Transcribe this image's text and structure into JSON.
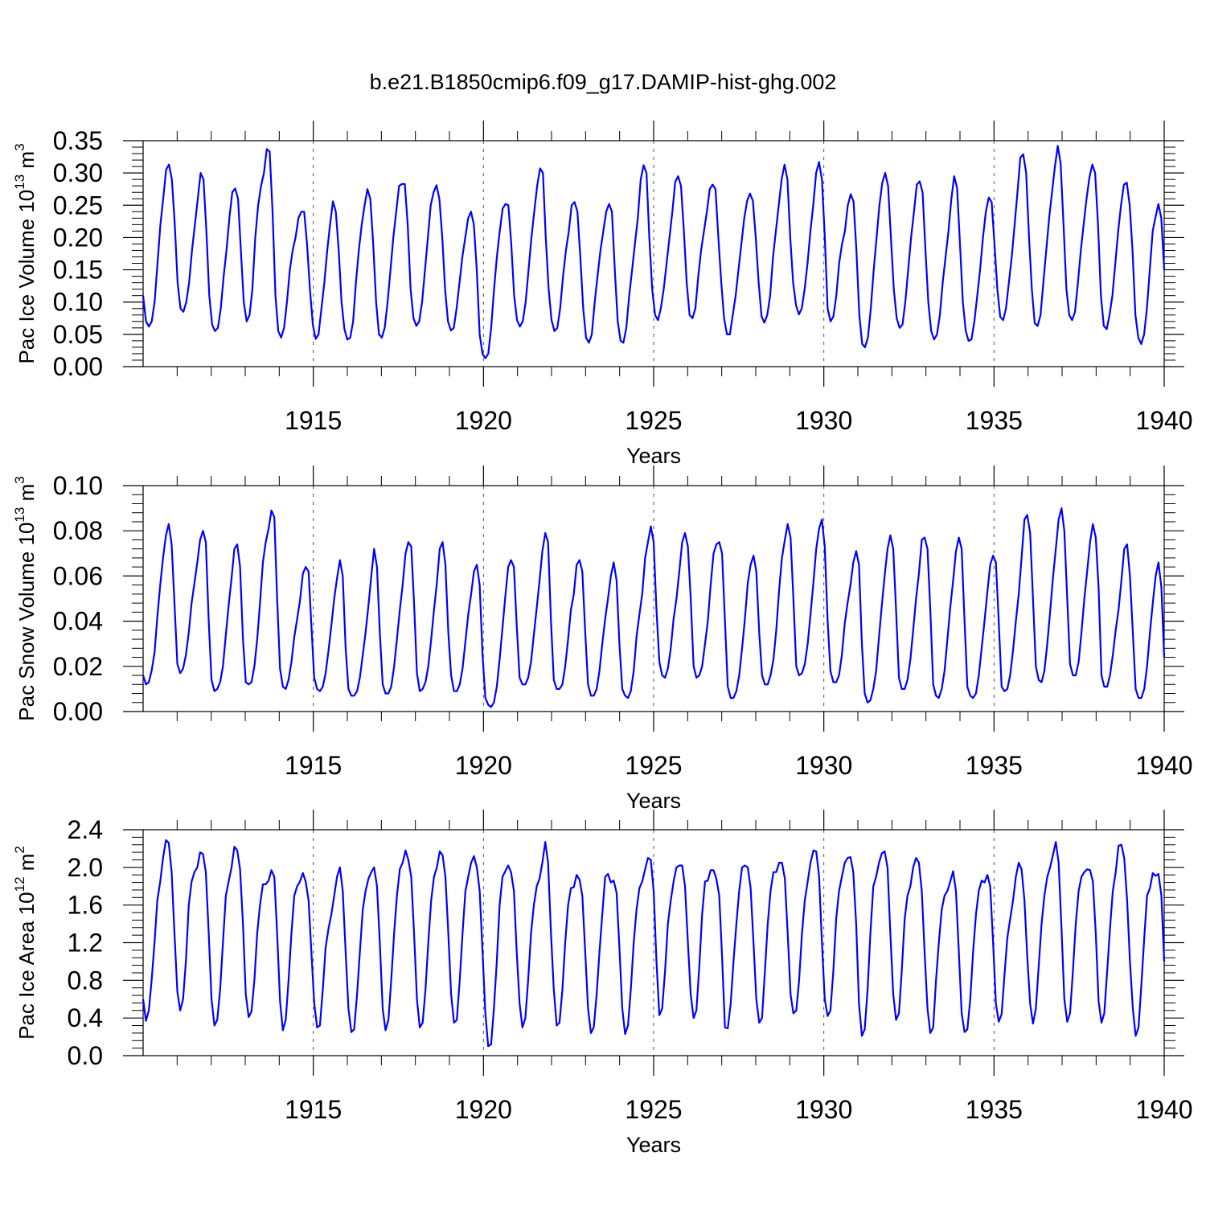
{
  "title": "b.e21.B1850cmip6.f09_g17.DAMIP-hist-ghg.002",
  "colors": {
    "line": "#0000ff",
    "axes": "#000000",
    "background": "#ffffff"
  },
  "chart_data": [
    {
      "type": "line",
      "ylabel": {
        "main": "Pac Ice Volume 10",
        "sup": "13",
        "tail": " m",
        "sup2": "3"
      },
      "xlabel": "Years",
      "xlim": [
        1910,
        1940
      ],
      "ylim": [
        0,
        0.35
      ],
      "xticks": [
        1915,
        1920,
        1925,
        1930,
        1935,
        1940
      ],
      "xtick_labels": [
        "1915",
        "1920",
        "1925",
        "1930",
        "1935",
        "1940"
      ],
      "yticks": [
        0,
        0.05,
        0.1,
        0.15,
        0.2,
        0.25,
        0.3,
        0.35
      ],
      "ytick_labels": [
        "0.00",
        "0.05",
        "0.10",
        "0.15",
        "0.20",
        "0.25",
        "0.30",
        "0.35"
      ],
      "start_year": 1910,
      "step": 0.0833,
      "values": [
        0.11,
        0.07,
        0.062,
        0.07,
        0.1,
        0.16,
        0.22,
        0.26,
        0.305,
        0.313,
        0.29,
        0.22,
        0.13,
        0.09,
        0.085,
        0.1,
        0.13,
        0.18,
        0.22,
        0.26,
        0.3,
        0.29,
        0.21,
        0.11,
        0.065,
        0.055,
        0.06,
        0.09,
        0.14,
        0.18,
        0.23,
        0.27,
        0.276,
        0.26,
        0.18,
        0.1,
        0.07,
        0.08,
        0.12,
        0.2,
        0.25,
        0.28,
        0.3,
        0.337,
        0.333,
        0.24,
        0.11,
        0.055,
        0.045,
        0.06,
        0.1,
        0.15,
        0.18,
        0.2,
        0.23,
        0.24,
        0.24,
        0.19,
        0.12,
        0.065,
        0.043,
        0.05,
        0.09,
        0.13,
        0.18,
        0.22,
        0.256,
        0.24,
        0.18,
        0.1,
        0.058,
        0.042,
        0.045,
        0.07,
        0.13,
        0.18,
        0.22,
        0.25,
        0.275,
        0.26,
        0.19,
        0.1,
        0.05,
        0.045,
        0.06,
        0.1,
        0.15,
        0.2,
        0.24,
        0.28,
        0.283,
        0.283,
        0.22,
        0.12,
        0.075,
        0.063,
        0.07,
        0.1,
        0.15,
        0.2,
        0.25,
        0.27,
        0.281,
        0.26,
        0.2,
        0.12,
        0.07,
        0.056,
        0.06,
        0.09,
        0.13,
        0.17,
        0.2,
        0.23,
        0.24,
        0.22,
        0.15,
        0.05,
        0.02,
        0.013,
        0.02,
        0.06,
        0.12,
        0.17,
        0.21,
        0.245,
        0.252,
        0.25,
        0.19,
        0.11,
        0.072,
        0.062,
        0.07,
        0.1,
        0.15,
        0.2,
        0.24,
        0.28,
        0.307,
        0.3,
        0.2,
        0.12,
        0.072,
        0.055,
        0.06,
        0.09,
        0.14,
        0.18,
        0.21,
        0.25,
        0.255,
        0.24,
        0.17,
        0.09,
        0.045,
        0.037,
        0.05,
        0.1,
        0.14,
        0.18,
        0.21,
        0.24,
        0.252,
        0.24,
        0.15,
        0.07,
        0.04,
        0.037,
        0.06,
        0.11,
        0.15,
        0.19,
        0.23,
        0.29,
        0.312,
        0.3,
        0.2,
        0.12,
        0.08,
        0.072,
        0.09,
        0.12,
        0.16,
        0.2,
        0.24,
        0.286,
        0.295,
        0.28,
        0.21,
        0.13,
        0.08,
        0.075,
        0.09,
        0.14,
        0.18,
        0.21,
        0.24,
        0.275,
        0.282,
        0.275,
        0.2,
        0.13,
        0.075,
        0.05,
        0.05,
        0.08,
        0.11,
        0.15,
        0.19,
        0.23,
        0.257,
        0.268,
        0.257,
        0.2,
        0.13,
        0.078,
        0.068,
        0.08,
        0.11,
        0.17,
        0.21,
        0.25,
        0.29,
        0.313,
        0.29,
        0.2,
        0.13,
        0.095,
        0.081,
        0.09,
        0.12,
        0.16,
        0.21,
        0.25,
        0.3,
        0.317,
        0.29,
        0.2,
        0.09,
        0.07,
        0.078,
        0.11,
        0.16,
        0.19,
        0.21,
        0.25,
        0.267,
        0.256,
        0.18,
        0.08,
        0.035,
        0.03,
        0.045,
        0.09,
        0.15,
        0.2,
        0.25,
        0.285,
        0.3,
        0.28,
        0.2,
        0.12,
        0.075,
        0.06,
        0.065,
        0.1,
        0.15,
        0.2,
        0.24,
        0.282,
        0.287,
        0.27,
        0.18,
        0.1,
        0.055,
        0.042,
        0.05,
        0.08,
        0.13,
        0.17,
        0.21,
        0.26,
        0.295,
        0.277,
        0.19,
        0.1,
        0.055,
        0.04,
        0.042,
        0.07,
        0.11,
        0.15,
        0.2,
        0.24,
        0.262,
        0.255,
        0.19,
        0.12,
        0.077,
        0.072,
        0.09,
        0.13,
        0.17,
        0.22,
        0.27,
        0.324,
        0.329,
        0.3,
        0.2,
        0.12,
        0.067,
        0.063,
        0.08,
        0.13,
        0.18,
        0.23,
        0.27,
        0.31,
        0.342,
        0.315,
        0.22,
        0.12,
        0.08,
        0.072,
        0.085,
        0.13,
        0.18,
        0.22,
        0.26,
        0.293,
        0.313,
        0.3,
        0.22,
        0.11,
        0.063,
        0.058,
        0.08,
        0.11,
        0.16,
        0.21,
        0.25,
        0.282,
        0.285,
        0.25,
        0.18,
        0.08,
        0.045,
        0.035,
        0.05,
        0.09,
        0.15,
        0.21,
        0.232,
        0.252,
        0.23,
        0.15
      ]
    },
    {
      "type": "line",
      "ylabel": {
        "main": "Pac Snow Volume 10",
        "sup": "13",
        "tail": " m",
        "sup2": "3"
      },
      "xlabel": "Years",
      "xlim": [
        1910,
        1940
      ],
      "ylim": [
        0,
        0.1
      ],
      "xticks": [
        1915,
        1920,
        1925,
        1930,
        1935,
        1940
      ],
      "xtick_labels": [
        "1915",
        "1920",
        "1925",
        "1930",
        "1935",
        "1940"
      ],
      "yticks": [
        0,
        0.02,
        0.04,
        0.06,
        0.08,
        0.1
      ],
      "ytick_labels": [
        "0.00",
        "0.02",
        "0.04",
        "0.06",
        "0.08",
        "0.10"
      ],
      "start_year": 1910,
      "step": 0.0833,
      "values": [
        0.016,
        0.012,
        0.013,
        0.018,
        0.026,
        0.042,
        0.056,
        0.068,
        0.078,
        0.083,
        0.074,
        0.048,
        0.021,
        0.017,
        0.019,
        0.025,
        0.035,
        0.048,
        0.057,
        0.066,
        0.076,
        0.08,
        0.075,
        0.04,
        0.014,
        0.009,
        0.01,
        0.013,
        0.02,
        0.034,
        0.047,
        0.059,
        0.072,
        0.074,
        0.064,
        0.032,
        0.013,
        0.012,
        0.013,
        0.02,
        0.032,
        0.048,
        0.066,
        0.075,
        0.081,
        0.089,
        0.086,
        0.05,
        0.019,
        0.011,
        0.01,
        0.014,
        0.022,
        0.033,
        0.041,
        0.049,
        0.061,
        0.064,
        0.062,
        0.038,
        0.015,
        0.01,
        0.009,
        0.011,
        0.017,
        0.027,
        0.038,
        0.05,
        0.059,
        0.067,
        0.06,
        0.028,
        0.01,
        0.007,
        0.007,
        0.009,
        0.015,
        0.025,
        0.035,
        0.047,
        0.06,
        0.072,
        0.064,
        0.035,
        0.012,
        0.008,
        0.008,
        0.011,
        0.02,
        0.032,
        0.045,
        0.056,
        0.07,
        0.075,
        0.073,
        0.048,
        0.017,
        0.009,
        0.01,
        0.013,
        0.02,
        0.032,
        0.045,
        0.057,
        0.072,
        0.075,
        0.065,
        0.035,
        0.016,
        0.009,
        0.009,
        0.012,
        0.019,
        0.031,
        0.043,
        0.052,
        0.062,
        0.065,
        0.056,
        0.025,
        0.006,
        0.003,
        0.002,
        0.004,
        0.011,
        0.023,
        0.037,
        0.051,
        0.064,
        0.067,
        0.064,
        0.038,
        0.015,
        0.012,
        0.012,
        0.015,
        0.022,
        0.034,
        0.046,
        0.058,
        0.071,
        0.079,
        0.075,
        0.04,
        0.014,
        0.01,
        0.01,
        0.012,
        0.02,
        0.032,
        0.045,
        0.052,
        0.065,
        0.067,
        0.062,
        0.035,
        0.012,
        0.007,
        0.007,
        0.01,
        0.018,
        0.03,
        0.041,
        0.05,
        0.06,
        0.066,
        0.058,
        0.03,
        0.01,
        0.007,
        0.006,
        0.009,
        0.018,
        0.033,
        0.043,
        0.052,
        0.068,
        0.075,
        0.082,
        0.075,
        0.045,
        0.022,
        0.016,
        0.015,
        0.019,
        0.028,
        0.041,
        0.05,
        0.062,
        0.075,
        0.079,
        0.073,
        0.05,
        0.02,
        0.015,
        0.016,
        0.02,
        0.03,
        0.04,
        0.056,
        0.07,
        0.074,
        0.075,
        0.07,
        0.04,
        0.011,
        0.006,
        0.006,
        0.009,
        0.016,
        0.028,
        0.041,
        0.057,
        0.065,
        0.069,
        0.062,
        0.035,
        0.016,
        0.012,
        0.012,
        0.016,
        0.023,
        0.036,
        0.054,
        0.068,
        0.076,
        0.083,
        0.077,
        0.05,
        0.02,
        0.016,
        0.017,
        0.021,
        0.03,
        0.043,
        0.057,
        0.072,
        0.081,
        0.085,
        0.073,
        0.04,
        0.018,
        0.013,
        0.013,
        0.016,
        0.025,
        0.039,
        0.048,
        0.056,
        0.066,
        0.071,
        0.065,
        0.03,
        0.008,
        0.004,
        0.005,
        0.01,
        0.018,
        0.033,
        0.047,
        0.06,
        0.072,
        0.078,
        0.072,
        0.045,
        0.015,
        0.01,
        0.01,
        0.014,
        0.023,
        0.036,
        0.05,
        0.061,
        0.076,
        0.077,
        0.072,
        0.045,
        0.012,
        0.007,
        0.006,
        0.01,
        0.018,
        0.032,
        0.046,
        0.058,
        0.071,
        0.077,
        0.072,
        0.04,
        0.011,
        0.007,
        0.006,
        0.008,
        0.016,
        0.028,
        0.04,
        0.053,
        0.065,
        0.069,
        0.066,
        0.04,
        0.011,
        0.009,
        0.01,
        0.016,
        0.027,
        0.04,
        0.052,
        0.068,
        0.085,
        0.087,
        0.079,
        0.05,
        0.02,
        0.014,
        0.013,
        0.018,
        0.03,
        0.044,
        0.059,
        0.072,
        0.085,
        0.09,
        0.08,
        0.05,
        0.021,
        0.016,
        0.016,
        0.022,
        0.035,
        0.05,
        0.062,
        0.075,
        0.083,
        0.077,
        0.055,
        0.016,
        0.011,
        0.011,
        0.016,
        0.025,
        0.036,
        0.045,
        0.058,
        0.072,
        0.074,
        0.06,
        0.035,
        0.01,
        0.006,
        0.006,
        0.01,
        0.02,
        0.035,
        0.048,
        0.06,
        0.066,
        0.055,
        0.024
      ]
    },
    {
      "type": "line",
      "ylabel": {
        "main": "Pac Ice Area 10",
        "sup": "12",
        "tail": " m",
        "sup2": "2"
      },
      "xlabel": "Years",
      "xlim": [
        1910,
        1940
      ],
      "ylim": [
        0,
        2.4
      ],
      "xticks": [
        1915,
        1920,
        1925,
        1930,
        1935,
        1940
      ],
      "xtick_labels": [
        "1915",
        "1920",
        "1925",
        "1930",
        "1935",
        "1940"
      ],
      "yticks": [
        0,
        0.4,
        0.8,
        1.2,
        1.6,
        2.0,
        2.4
      ],
      "ytick_labels": [
        "0.0",
        "0.4",
        "0.8",
        "1.2",
        "1.6",
        "2.0",
        "2.4"
      ],
      "start_year": 1910,
      "step": 0.0833,
      "values": [
        0.6,
        0.37,
        0.48,
        0.8,
        1.2,
        1.65,
        1.85,
        2.1,
        2.29,
        2.26,
        1.95,
        1.3,
        0.68,
        0.48,
        0.6,
        1.0,
        1.6,
        1.85,
        1.95,
        2.0,
        2.16,
        2.14,
        1.95,
        1.3,
        0.6,
        0.32,
        0.38,
        0.7,
        1.2,
        1.7,
        1.85,
        2.0,
        2.22,
        2.18,
        1.98,
        1.4,
        0.65,
        0.41,
        0.47,
        0.8,
        1.3,
        1.6,
        1.82,
        1.82,
        1.86,
        1.97,
        1.9,
        1.3,
        0.58,
        0.27,
        0.38,
        0.8,
        1.3,
        1.7,
        1.8,
        1.85,
        1.94,
        1.85,
        1.65,
        1.1,
        0.56,
        0.3,
        0.32,
        0.7,
        1.15,
        1.35,
        1.5,
        1.7,
        1.9,
        2.0,
        1.75,
        1.1,
        0.5,
        0.25,
        0.28,
        0.65,
        1.1,
        1.55,
        1.75,
        1.88,
        1.95,
        2.0,
        1.8,
        1.2,
        0.5,
        0.27,
        0.38,
        0.8,
        1.3,
        1.7,
        1.98,
        2.05,
        2.18,
        2.08,
        1.9,
        1.3,
        0.6,
        0.3,
        0.35,
        0.7,
        1.2,
        1.65,
        1.9,
        2.0,
        2.17,
        2.13,
        1.9,
        1.3,
        0.65,
        0.35,
        0.38,
        0.8,
        1.3,
        1.75,
        1.9,
        2.05,
        2.12,
        2.0,
        1.75,
        1.1,
        0.45,
        0.1,
        0.12,
        0.5,
        1.0,
        1.6,
        1.9,
        1.96,
        2.02,
        1.95,
        1.75,
        1.1,
        0.55,
        0.3,
        0.4,
        0.8,
        1.3,
        1.6,
        1.8,
        1.88,
        2.05,
        2.27,
        2.05,
        1.3,
        0.7,
        0.32,
        0.35,
        0.7,
        1.2,
        1.6,
        1.78,
        1.79,
        1.92,
        1.87,
        1.7,
        1.1,
        0.5,
        0.24,
        0.3,
        0.65,
        1.1,
        1.5,
        1.9,
        1.93,
        1.84,
        1.86,
        1.73,
        1.15,
        0.5,
        0.23,
        0.32,
        0.7,
        1.2,
        1.55,
        1.78,
        1.85,
        1.98,
        2.1,
        2.08,
        1.75,
        1.0,
        0.43,
        0.5,
        0.9,
        1.4,
        1.65,
        1.85,
        2.0,
        2.02,
        2.02,
        1.8,
        1.2,
        0.65,
        0.4,
        0.48,
        0.95,
        1.5,
        1.85,
        1.86,
        1.97,
        1.97,
        1.88,
        1.7,
        1.05,
        0.3,
        0.29,
        0.55,
        1.0,
        1.4,
        1.75,
        2.0,
        2.02,
        2.0,
        1.78,
        1.2,
        0.6,
        0.35,
        0.4,
        0.9,
        1.4,
        1.75,
        1.95,
        1.95,
        2.05,
        2.05,
        1.88,
        1.3,
        0.65,
        0.45,
        0.48,
        0.8,
        1.3,
        1.65,
        1.85,
        2.05,
        2.18,
        2.17,
        1.9,
        1.2,
        0.6,
        0.42,
        0.48,
        0.9,
        1.45,
        1.75,
        1.9,
        2.05,
        2.1,
        2.11,
        1.95,
        1.4,
        0.55,
        0.21,
        0.28,
        0.7,
        1.3,
        1.8,
        1.9,
        2.05,
        2.15,
        2.17,
        2.0,
        1.3,
        0.65,
        0.38,
        0.45,
        0.9,
        1.45,
        1.7,
        1.8,
        2.0,
        2.1,
        2.05,
        1.75,
        1.1,
        0.5,
        0.24,
        0.3,
        0.8,
        1.2,
        1.55,
        1.7,
        1.75,
        1.85,
        1.96,
        1.75,
        1.1,
        0.45,
        0.25,
        0.28,
        0.6,
        1.1,
        1.5,
        1.75,
        1.86,
        1.84,
        1.92,
        1.8,
        1.2,
        0.55,
        0.36,
        0.44,
        0.85,
        1.25,
        1.45,
        1.65,
        1.9,
        2.05,
        1.98,
        1.65,
        1.05,
        0.55,
        0.34,
        0.5,
        0.95,
        1.4,
        1.7,
        1.9,
        2.0,
        2.13,
        2.27,
        2.05,
        1.35,
        0.6,
        0.36,
        0.45,
        0.9,
        1.4,
        1.75,
        1.9,
        1.95,
        1.98,
        1.97,
        1.85,
        1.3,
        0.58,
        0.35,
        0.45,
        0.9,
        1.35,
        1.75,
        1.95,
        2.23,
        2.24,
        2.1,
        1.65,
        1.0,
        0.5,
        0.21,
        0.3,
        0.75,
        1.25,
        1.7,
        1.78,
        1.94,
        1.91,
        1.93,
        1.7,
        1.0
      ]
    }
  ]
}
